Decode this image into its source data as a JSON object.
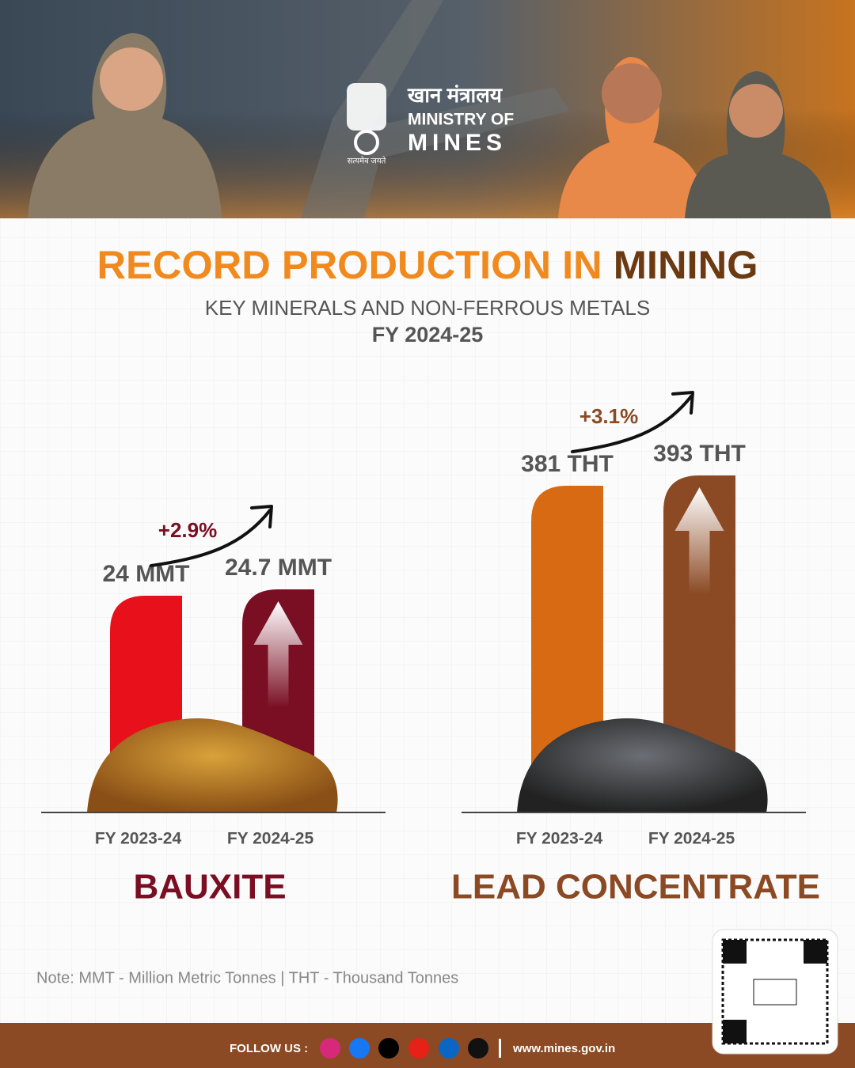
{
  "header": {
    "hindi": "खान मंत्रालय",
    "line1": "MINISTRY OF",
    "line2": "MINES",
    "motto": "सत्यमेव जयते"
  },
  "title": {
    "part1": "RECORD PRODUCTION IN",
    "part2": "MINING"
  },
  "subtitle": "KEY MINERALS AND NON-FERROUS METALS",
  "period": "FY 2024-25",
  "chart_data": [
    {
      "type": "bar",
      "title": "BAUXITE",
      "title_color": "#7a0e22",
      "categories": [
        "FY 2023-24",
        "FY 2024-25"
      ],
      "values": [
        24,
        24.7
      ],
      "value_labels": [
        "24 MMT",
        "24.7 MMT"
      ],
      "colors": [
        "#e8101a",
        "#7a0e22"
      ],
      "annotation": "+2.9%"
    },
    {
      "type": "bar",
      "title": "LEAD CONCENTRATE",
      "title_color": "#8b4a24",
      "categories": [
        "FY 2023-24",
        "FY 2024-25"
      ],
      "values": [
        381,
        393
      ],
      "value_labels": [
        "381 THT",
        "393 THT"
      ],
      "colors": [
        "#d96a14",
        "#8b4a24"
      ],
      "annotation": "+3.1%"
    }
  ],
  "note": "Note: MMT - Million Metric Tonnes | THT - Thousand Tonnes",
  "footer": {
    "follow": "FOLLOW US :",
    "url": "www.mines.gov.in"
  }
}
